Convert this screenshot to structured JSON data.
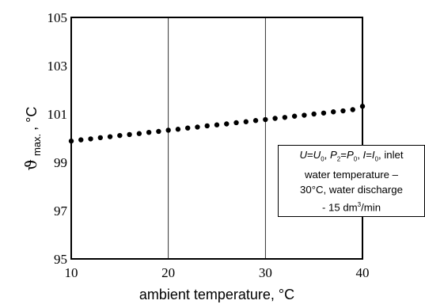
{
  "chart_data": {
    "type": "scatter",
    "xlabel": "ambient temperature, °C",
    "ylabel": {
      "symbol": "ϑ",
      "subscript": "max.",
      "unit": ", °C"
    },
    "xlim": [
      10,
      40
    ],
    "ylim": [
      95,
      105
    ],
    "x_ticks": [
      "10",
      "20",
      "30",
      "40"
    ],
    "y_ticks": [
      "95",
      "97",
      "99",
      "101",
      "103",
      "105"
    ],
    "grid": "vertical",
    "x": [
      10,
      11,
      12,
      13,
      14,
      15,
      16,
      17,
      18,
      19,
      20,
      21,
      22,
      23,
      24,
      25,
      26,
      27,
      28,
      29,
      30,
      31,
      32,
      33,
      34,
      35,
      36,
      37,
      38,
      39,
      40
    ],
    "y": [
      99.88,
      99.93,
      99.97,
      100.02,
      100.06,
      100.11,
      100.15,
      100.19,
      100.24,
      100.28,
      100.33,
      100.37,
      100.42,
      100.46,
      100.51,
      100.55,
      100.59,
      100.64,
      100.68,
      100.73,
      100.77,
      100.82,
      100.86,
      100.91,
      100.95,
      101.0,
      101.04,
      101.09,
      101.13,
      101.18,
      101.32
    ],
    "annotation": {
      "line1": {
        "U": "U",
        "eq1": "=",
        "U0": "U",
        "sub0": "0",
        "sep1": ", ",
        "P": "P",
        "P2sub": "2",
        "eq2": "=",
        "P0": "P",
        "sep2": ", ",
        "I": "I",
        "eq3": "=",
        "I0": "I",
        "sep3": ", inlet"
      },
      "line2": "water temperature –",
      "line3": "30°C, water discharge",
      "line4_pre": "- 15 dm",
      "line4_sup": "3",
      "line4_post": "/min"
    }
  }
}
